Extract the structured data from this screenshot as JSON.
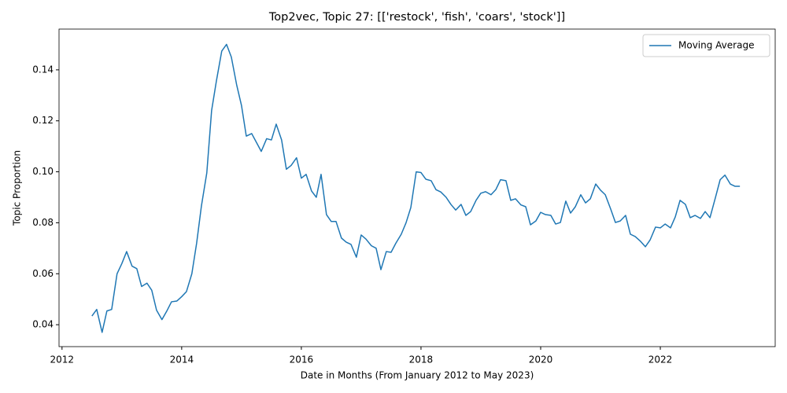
{
  "chart_data": {
    "type": "line",
    "title": "Top2vec, Topic 27: [['restock', 'fish', 'coars', 'stock']]",
    "x_label": "Date in Months (From January 2012 to May 2023)",
    "y_label": "Topic Proportion",
    "x": [
      2012.5,
      2012.58,
      2012.67,
      2012.75,
      2012.83,
      2012.92,
      2013.0,
      2013.08,
      2013.17,
      2013.25,
      2013.33,
      2013.42,
      2013.5,
      2013.58,
      2013.67,
      2013.75,
      2013.83,
      2013.92,
      2014.0,
      2014.08,
      2014.17,
      2014.25,
      2014.33,
      2014.42,
      2014.5,
      2014.58,
      2014.67,
      2014.75,
      2014.83,
      2014.92,
      2015.0,
      2015.08,
      2015.17,
      2015.25,
      2015.33,
      2015.42,
      2015.5,
      2015.58,
      2015.67,
      2015.75,
      2015.83,
      2015.92,
      2016.0,
      2016.08,
      2016.17,
      2016.25,
      2016.33,
      2016.42,
      2016.5,
      2016.58,
      2016.67,
      2016.75,
      2016.83,
      2016.92,
      2017.0,
      2017.08,
      2017.17,
      2017.25,
      2017.33,
      2017.42,
      2017.5,
      2017.58,
      2017.67,
      2017.75,
      2017.83,
      2017.92,
      2018.0,
      2018.08,
      2018.17,
      2018.25,
      2018.33,
      2018.42,
      2018.5,
      2018.58,
      2018.67,
      2018.75,
      2018.83,
      2018.92,
      2019.0,
      2019.08,
      2019.17,
      2019.25,
      2019.33,
      2019.42,
      2019.5,
      2019.58,
      2019.67,
      2019.75,
      2019.83,
      2019.92,
      2020.0,
      2020.08,
      2020.17,
      2020.25,
      2020.33,
      2020.42,
      2020.5,
      2020.58,
      2020.67,
      2020.75,
      2020.83,
      2020.92,
      2021.0,
      2021.08,
      2021.17,
      2021.25,
      2021.33,
      2021.42,
      2021.5,
      2021.58,
      2021.67,
      2021.75,
      2021.83,
      2021.92,
      2022.0,
      2022.08,
      2022.17,
      2022.25,
      2022.33,
      2022.42,
      2022.5,
      2022.58,
      2022.67,
      2022.75,
      2022.83,
      2022.92,
      2023.0,
      2023.08,
      2023.17,
      2023.25,
      2023.33
    ],
    "series": [
      {
        "name": "Moving Average",
        "color": "#1f77b4",
        "values": [
          0.0434,
          0.046,
          0.037,
          0.0454,
          0.046,
          0.06,
          0.064,
          0.0687,
          0.063,
          0.062,
          0.055,
          0.0563,
          0.0535,
          0.0457,
          0.042,
          0.0453,
          0.049,
          0.0493,
          0.051,
          0.053,
          0.06,
          0.072,
          0.0866,
          0.0996,
          0.124,
          0.1356,
          0.1474,
          0.15,
          0.145,
          0.134,
          0.126,
          0.114,
          0.115,
          0.1115,
          0.108,
          0.113,
          0.1125,
          0.1187,
          0.1125,
          0.101,
          0.1025,
          0.1055,
          0.0975,
          0.099,
          0.0925,
          0.09,
          0.099,
          0.0832,
          0.0805,
          0.0805,
          0.074,
          0.0724,
          0.0715,
          0.0665,
          0.0752,
          0.0736,
          0.071,
          0.07,
          0.0616,
          0.0687,
          0.0684,
          0.072,
          0.0755,
          0.08,
          0.086,
          0.1,
          0.0997,
          0.0971,
          0.0965,
          0.093,
          0.0921,
          0.09,
          0.0872,
          0.085,
          0.0872,
          0.0829,
          0.0844,
          0.0888,
          0.0916,
          0.0922,
          0.091,
          0.093,
          0.0969,
          0.0965,
          0.0888,
          0.0894,
          0.087,
          0.0863,
          0.0792,
          0.0807,
          0.0841,
          0.0832,
          0.0829,
          0.0795,
          0.0801,
          0.0885,
          0.0838,
          0.0863,
          0.091,
          0.0878,
          0.0894,
          0.0952,
          0.0928,
          0.091,
          0.0854,
          0.0801,
          0.0807,
          0.0829,
          0.0755,
          0.0746,
          0.0727,
          0.0706,
          0.0733,
          0.0783,
          0.078,
          0.0795,
          0.078,
          0.0823,
          0.0888,
          0.0872,
          0.082,
          0.0829,
          0.0817,
          0.0844,
          0.082,
          0.0898,
          0.0969,
          0.0987,
          0.0952,
          0.0943,
          0.0943
        ]
      }
    ],
    "xlim": [
      2011.95,
      2023.92
    ],
    "xticks": [
      2012,
      2014,
      2016,
      2018,
      2020,
      2022
    ],
    "ylim": [
      0.0314,
      0.156
    ],
    "yticks": [
      0.04,
      0.06,
      0.08,
      {
        "value": 0.1,
        "label": "0.10"
      },
      0.12,
      0.14
    ],
    "grid": false,
    "legend": "upper right"
  }
}
